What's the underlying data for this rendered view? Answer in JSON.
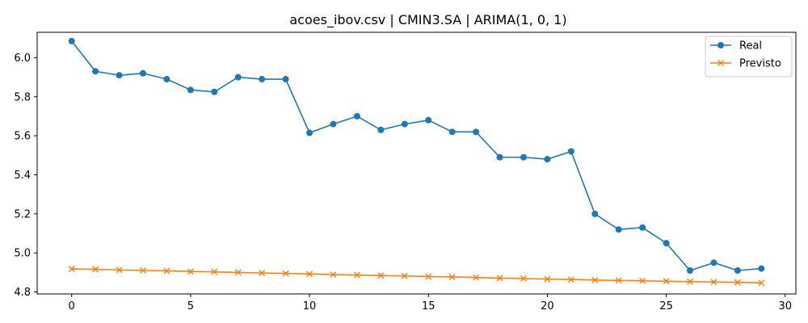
{
  "chart_data": {
    "type": "line",
    "title": "acoes_ibov.csv | CMIN3.SA | ARIMA(1, 0, 1)",
    "xlabel": "",
    "ylabel": "",
    "xlim": [
      -1.45,
      30.45
    ],
    "ylim": [
      4.79,
      6.13
    ],
    "x_ticks": [
      0,
      5,
      10,
      15,
      20,
      25,
      30
    ],
    "y_ticks": [
      4.8,
      5.0,
      5.2,
      5.4,
      5.6,
      5.8,
      6.0
    ],
    "x_tick_labels": [
      "0",
      "5",
      "10",
      "15",
      "20",
      "25",
      "30"
    ],
    "y_tick_labels": [
      "4.8",
      "5.0",
      "5.2",
      "5.4",
      "5.6",
      "5.8",
      "6.0"
    ],
    "grid": false,
    "legend_position": "top-right",
    "x": [
      0,
      1,
      2,
      3,
      4,
      5,
      6,
      7,
      8,
      9,
      10,
      11,
      12,
      13,
      14,
      15,
      16,
      17,
      18,
      19,
      20,
      21,
      22,
      23,
      24,
      25,
      26,
      27,
      28,
      29
    ],
    "series": [
      {
        "name": "Real",
        "color": "#1f77b4",
        "marker": "circle",
        "values": [
          6.085,
          5.93,
          5.91,
          5.92,
          5.89,
          5.835,
          5.825,
          5.9,
          5.89,
          5.89,
          5.615,
          5.66,
          5.7,
          5.63,
          5.66,
          5.68,
          5.62,
          5.62,
          5.49,
          5.49,
          5.48,
          5.52,
          5.2,
          5.12,
          5.13,
          5.05,
          4.91,
          4.95,
          4.91,
          4.92
        ]
      },
      {
        "name": "Previsto",
        "color": "#ff7f0e",
        "marker": "x",
        "values": [
          4.918,
          4.916,
          4.913,
          4.91,
          4.908,
          4.905,
          4.903,
          4.9,
          4.897,
          4.895,
          4.892,
          4.889,
          4.887,
          4.884,
          4.882,
          4.879,
          4.877,
          4.874,
          4.871,
          4.869,
          4.866,
          4.864,
          4.861,
          4.859,
          4.857,
          4.855,
          4.853,
          4.851,
          4.849,
          4.847
        ]
      }
    ]
  }
}
